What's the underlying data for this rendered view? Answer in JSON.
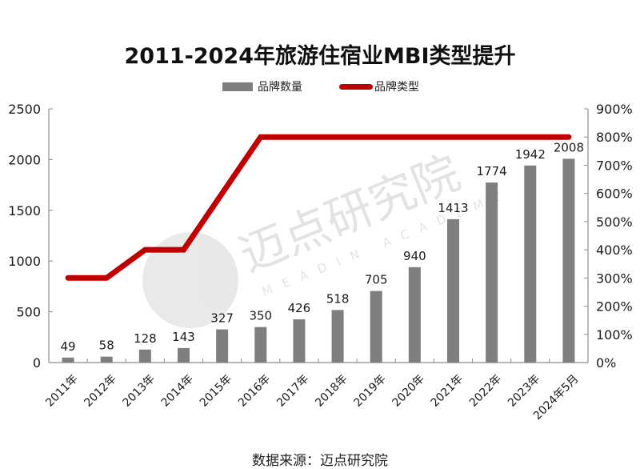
{
  "title": "2011-2024年旅游住宿业MBI类型提升",
  "legend": {
    "bar_label": "品牌数量",
    "line_label": "品牌类型"
  },
  "source": "数据来源：迈点研究院",
  "watermark": {
    "text_cn": "迈点研究院",
    "text_en": "MEADIN ACADEMY"
  },
  "colors": {
    "bar": "#7f7f7f",
    "line": "#c00000",
    "axis": "#8c8c8c"
  },
  "chart_data": {
    "type": "bar+line",
    "title": "2011-2024年旅游住宿业MBI类型提升",
    "categories": [
      "2011年",
      "2012年",
      "2013年",
      "2014年",
      "2015年",
      "2016年",
      "2017年",
      "2018年",
      "2019年",
      "2020年",
      "2021年",
      "2022年",
      "2023年",
      "2024年5月"
    ],
    "series": [
      {
        "name": "品牌数量",
        "type": "bar",
        "axis": "left",
        "values": [
          49,
          58,
          128,
          143,
          327,
          350,
          426,
          518,
          705,
          940,
          1413,
          1774,
          1942,
          2008
        ]
      },
      {
        "name": "品牌类型",
        "type": "line",
        "axis": "right",
        "values": [
          300,
          300,
          400,
          400,
          600,
          800,
          800,
          800,
          800,
          800,
          800,
          800,
          800,
          800
        ],
        "unit": "%"
      }
    ],
    "left_axis": {
      "min": 0,
      "max": 2500,
      "step": 500,
      "ticks": [
        "0",
        "500",
        "1000",
        "1500",
        "2000",
        "2500"
      ]
    },
    "right_axis": {
      "min": 0,
      "max": 900,
      "step": 100,
      "ticks": [
        "0%",
        "100%",
        "200%",
        "300%",
        "400%",
        "500%",
        "600%",
        "700%",
        "800%",
        "900%"
      ]
    },
    "xlabel": "",
    "ylabel": "",
    "grid": false,
    "legend_position": "top",
    "data_labels": true
  }
}
